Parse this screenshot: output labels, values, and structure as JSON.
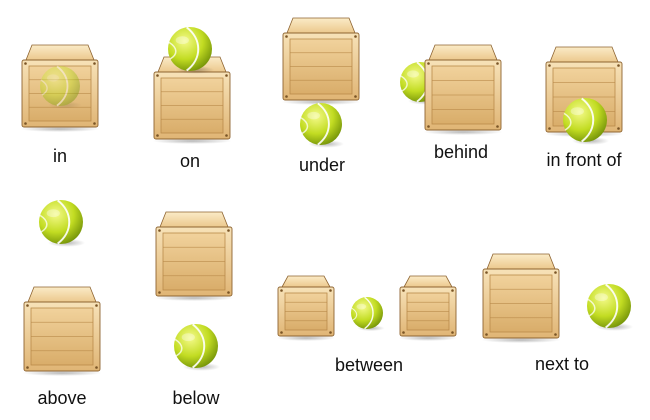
{
  "scenes": [
    {
      "key": "in",
      "label": "in"
    },
    {
      "key": "on",
      "label": "on"
    },
    {
      "key": "under",
      "label": "under"
    },
    {
      "key": "behind",
      "label": "behind"
    },
    {
      "key": "in_front_of",
      "label": "in front of"
    },
    {
      "key": "above",
      "label": "above"
    },
    {
      "key": "below",
      "label": "below"
    },
    {
      "key": "between",
      "label": "between"
    },
    {
      "key": "next_to",
      "label": "next to"
    }
  ],
  "colors": {
    "crate_light": "#f3d7a3",
    "crate_mid": "#e2b877",
    "crate_dark": "#b98a4a",
    "crate_edge": "#8e6431",
    "ball_light": "#eef56a",
    "ball_mid": "#b8d51a",
    "ball_dark": "#6f8f08",
    "ball_seam": "#ffffff"
  }
}
